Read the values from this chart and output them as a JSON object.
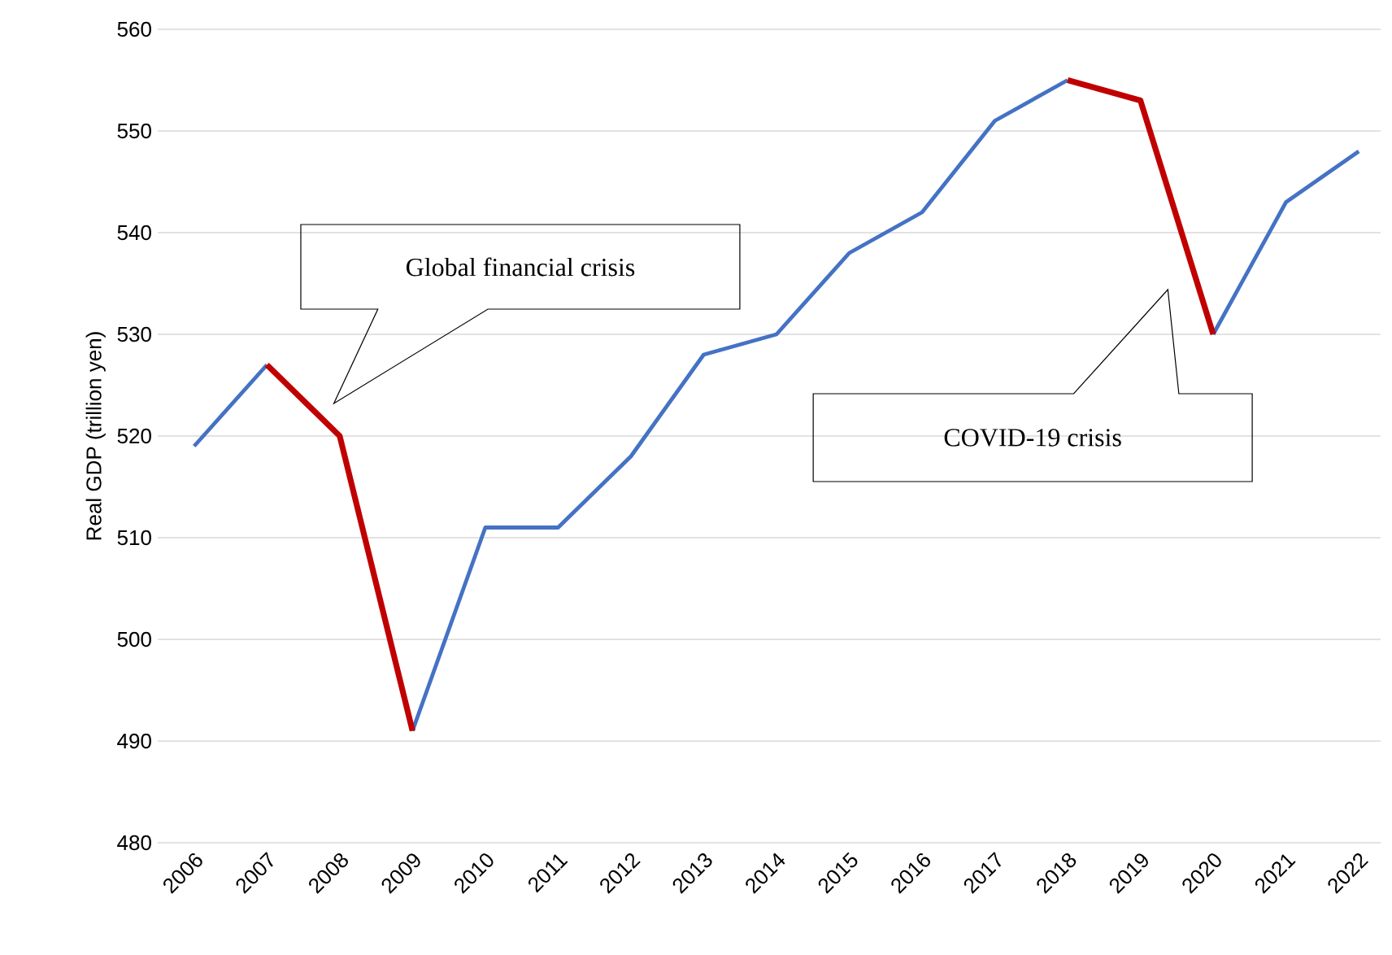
{
  "chart_data": {
    "type": "line",
    "ylabel": "Real GDP (trillion yen)",
    "categories": [
      "2006",
      "2007",
      "2008",
      "2009",
      "2010",
      "2011",
      "2012",
      "2013",
      "2014",
      "2015",
      "2016",
      "2017",
      "2018",
      "2019",
      "2020",
      "2021",
      "2022"
    ],
    "series": [
      {
        "color": "#4472c4",
        "values": [
          519,
          527,
          null,
          491,
          511,
          511,
          518,
          528,
          530,
          538,
          542,
          551,
          555,
          null,
          530,
          543,
          548
        ]
      },
      {
        "color": "#c00000",
        "values": [
          null,
          527,
          520,
          491,
          null,
          null,
          null,
          null,
          null,
          null,
          null,
          null,
          555,
          553,
          530,
          null,
          null
        ]
      }
    ],
    "ylim": [
      480,
      560
    ],
    "yticks": [
      480,
      490,
      500,
      510,
      520,
      530,
      540,
      550,
      560
    ],
    "grid": "y",
    "annotations": [
      "Global financial crisis",
      "COVID-19 crisis"
    ]
  }
}
